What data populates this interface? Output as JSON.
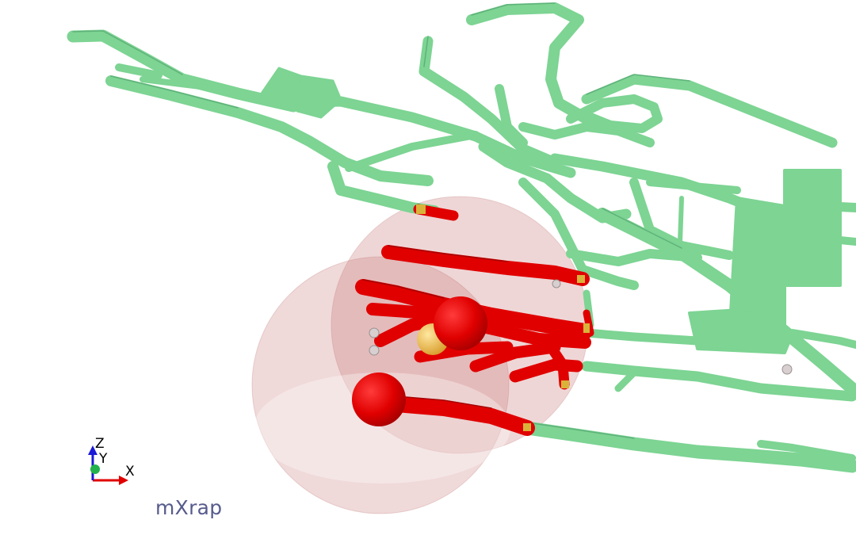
{
  "scene": {
    "background": "#ffffff",
    "colors": {
      "tunnel": "#7dd493",
      "tunnel_edge": "#5fb27a",
      "highlight": "#e00000",
      "highlight_edge": "#a50000",
      "transition": "#d9b23a",
      "sphere_large": "#e00000",
      "sphere_event": "#e9b646",
      "sphere_small": "#d8d0d0",
      "halo": "#c97878"
    },
    "objects": [
      {
        "name": "mine-tunnel-network",
        "kind": "green-tunnels"
      },
      {
        "name": "highlighted-drives",
        "kind": "red-tunnels"
      },
      {
        "name": "influence-sphere-upper",
        "kind": "translucent-sphere"
      },
      {
        "name": "influence-sphere-lower",
        "kind": "translucent-sphere"
      },
      {
        "name": "event-sphere",
        "kind": "sphere"
      },
      {
        "name": "event-marker",
        "kind": "sphere"
      },
      {
        "name": "sensor-markers",
        "kind": "small-spheres"
      }
    ]
  },
  "orientation_axes": {
    "x_label": "X",
    "y_label": "Y",
    "z_label": "Z",
    "x_color": "#e00000",
    "y_color": "#22b14c",
    "z_color": "#1a1ad8"
  },
  "branding": {
    "logo_text": "mXrap"
  }
}
